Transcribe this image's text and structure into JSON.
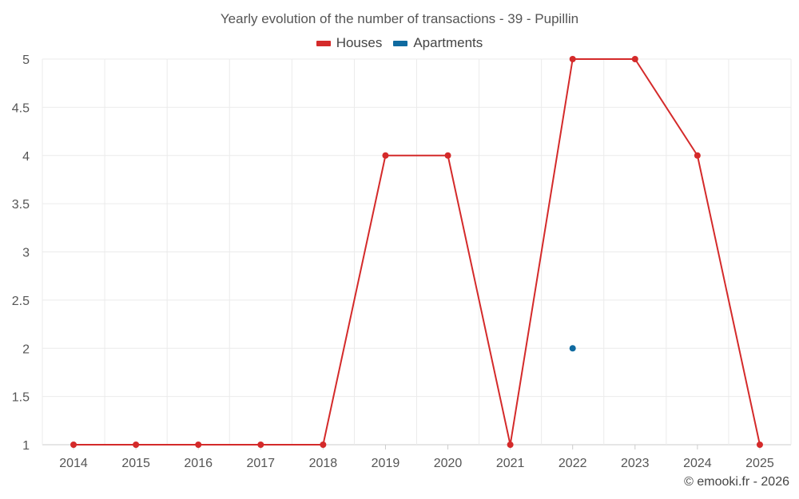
{
  "chart_data": {
    "type": "line",
    "title": "Yearly evolution of the number of transactions - 39 - Pupillin",
    "xlabel": "",
    "ylabel": "",
    "categories": [
      "2014",
      "2015",
      "2016",
      "2017",
      "2018",
      "2019",
      "2020",
      "2021",
      "2022",
      "2023",
      "2024",
      "2025"
    ],
    "ylim": [
      1,
      5
    ],
    "yticks": [
      "1",
      "1.5",
      "2",
      "2.5",
      "3",
      "3.5",
      "4",
      "4.5",
      "5"
    ],
    "grid": true,
    "legend_position": "top-center",
    "series": [
      {
        "name": "Houses",
        "color": "#d42a2a",
        "values": [
          1,
          1,
          1,
          1,
          1,
          4,
          4,
          1,
          5,
          5,
          4,
          1
        ]
      },
      {
        "name": "Apartments",
        "color": "#0f6aa0",
        "values": [
          null,
          null,
          null,
          null,
          null,
          null,
          null,
          null,
          2,
          null,
          null,
          null
        ]
      }
    ]
  },
  "credit": "© emooki.fr - 2026"
}
